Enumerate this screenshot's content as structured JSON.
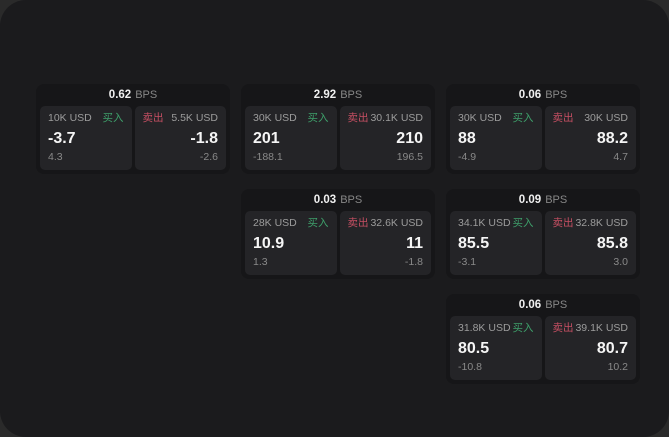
{
  "labels": {
    "bps_unit": "BPS",
    "buy": "买入",
    "sell": "卖出"
  },
  "colors": {
    "buy": "#3ea06b",
    "sell": "#c64f63",
    "panel_bg": "#1b1b1d",
    "card_bg": "#161618",
    "tile_bg": "#242427"
  },
  "cards": [
    {
      "row": 1,
      "col": 1,
      "bps": "0.62",
      "buy": {
        "size": "10K USD",
        "price": "-3.7",
        "delta": "4.3"
      },
      "sell": {
        "size": "5.5K USD",
        "price": "-1.8",
        "delta": "-2.6"
      }
    },
    {
      "row": 1,
      "col": 2,
      "bps": "2.92",
      "buy": {
        "size": "30K USD",
        "price": "201",
        "delta": "-188.1"
      },
      "sell": {
        "size": "30.1K USD",
        "price": "210",
        "delta": "196.5"
      }
    },
    {
      "row": 1,
      "col": 3,
      "bps": "0.06",
      "buy": {
        "size": "30K USD",
        "price": "88",
        "delta": "-4.9"
      },
      "sell": {
        "size": "30K USD",
        "price": "88.2",
        "delta": "4.7"
      }
    },
    {
      "row": 2,
      "col": 2,
      "bps": "0.03",
      "buy": {
        "size": "28K USD",
        "price": "10.9",
        "delta": "1.3"
      },
      "sell": {
        "size": "32.6K USD",
        "price": "11",
        "delta": "-1.8"
      }
    },
    {
      "row": 2,
      "col": 3,
      "bps": "0.09",
      "buy": {
        "size": "34.1K USD",
        "price": "85.5",
        "delta": "-3.1"
      },
      "sell": {
        "size": "32.8K USD",
        "price": "85.8",
        "delta": "3.0"
      }
    },
    {
      "row": 3,
      "col": 3,
      "bps": "0.06",
      "buy": {
        "size": "31.8K USD",
        "price": "80.5",
        "delta": "-10.8"
      },
      "sell": {
        "size": "39.1K USD",
        "price": "80.7",
        "delta": "10.2"
      }
    }
  ]
}
